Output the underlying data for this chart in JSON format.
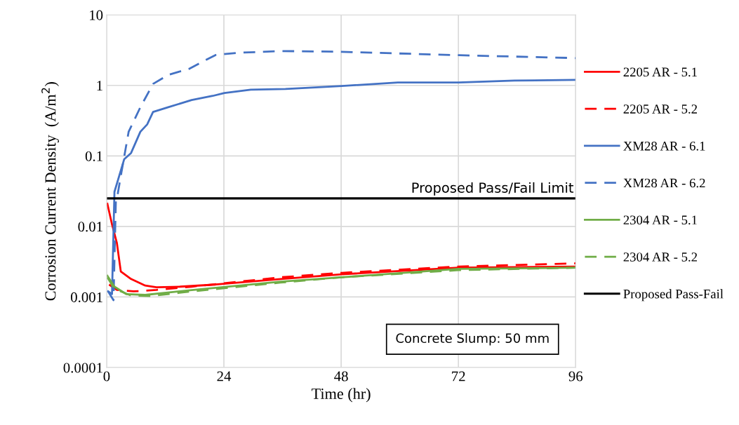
{
  "chart_data": {
    "type": "line",
    "xlabel": "Time (hr)",
    "ylabel": "Corrosion Current Density  (A/m$^{2}$)",
    "log": "y",
    "xlim": [
      0,
      96
    ],
    "xticks": [
      0,
      24,
      48,
      72,
      96
    ],
    "ylim": [
      0.0001,
      10
    ],
    "yticks": [
      0.0001,
      0.001,
      0.01,
      0.1,
      1,
      10
    ],
    "grid": true,
    "legend": "right",
    "annotations": [
      {
        "text": "Proposed Pass/Fail Limit",
        "x": 96,
        "y": 0.025
      },
      "Concrete Slump: 50 mm"
    ],
    "series": [
      {
        "name": "2205 AR - 5.1",
        "color": "#ff0000",
        "line_style": "solid",
        "x": [
          0.15,
          1.1,
          2.1,
          2.9,
          5.0,
          7.9,
          10.2,
          15,
          22.3,
          35.6,
          48.1,
          72,
          96
        ],
        "values": [
          0.021,
          0.0107,
          0.0058,
          0.0023,
          0.0018,
          0.00145,
          0.00137,
          0.0014,
          0.0015,
          0.0018,
          0.0021,
          0.0026,
          0.0027
        ]
      },
      {
        "name": "2205 AR - 5.2",
        "color": "#ff0000",
        "line_style": "dashed",
        "x": [
          0.5,
          2.1,
          5.5,
          10.2,
          17.4,
          35.6,
          48.1,
          72,
          96
        ],
        "values": [
          0.0015,
          0.00126,
          0.0012,
          0.00126,
          0.0014,
          0.0019,
          0.0022,
          0.0027,
          0.003
        ]
      },
      {
        "name": "XM28 AR - 6.1",
        "color": "#4472c4",
        "line_style": "solid",
        "x": [
          0.3,
          1.1,
          1.6,
          3.6,
          5.0,
          6.9,
          8.3,
          9.5,
          12.6,
          17.4,
          21.7,
          24.1,
          29.5,
          36.6,
          48.1,
          59.6,
          72,
          83.5,
          96
        ],
        "values": [
          0.0012,
          0.0011,
          0.031,
          0.09,
          0.11,
          0.22,
          0.28,
          0.42,
          0.49,
          0.62,
          0.71,
          0.78,
          0.87,
          0.89,
          0.98,
          1.1,
          1.1,
          1.17,
          1.2
        ]
      },
      {
        "name": "XM28 AR - 6.2",
        "color": "#4472c4",
        "line_style": "dashed",
        "x": [
          0.3,
          1.4,
          1.9,
          2.2,
          3.0,
          4.5,
          6.9,
          9.5,
          12.6,
          17,
          19.8,
          22.3,
          27,
          35.6,
          48,
          72,
          96
        ],
        "values": [
          0.0012,
          0.0009,
          0.025,
          0.027,
          0.057,
          0.22,
          0.49,
          1.05,
          1.41,
          1.73,
          2.2,
          2.7,
          2.9,
          3.07,
          3.0,
          2.68,
          2.44
        ]
      },
      {
        "name": "2304 AR - 5.1",
        "color": "#70ad47",
        "line_style": "solid",
        "x": [
          0.15,
          1.6,
          4.0,
          7.9,
          17.4,
          35.6,
          48.1,
          72,
          96
        ],
        "values": [
          0.002,
          0.0014,
          0.0011,
          0.00107,
          0.00125,
          0.00165,
          0.0019,
          0.0025,
          0.0026
        ]
      },
      {
        "name": "2304 AR - 5.2",
        "color": "#70ad47",
        "line_style": "dashed",
        "x": [
          0.15,
          1.6,
          5,
          9,
          17.4,
          35.6,
          48,
          72,
          96
        ],
        "values": [
          0.0019,
          0.0013,
          0.00105,
          0.00103,
          0.0012,
          0.0016,
          0.0019,
          0.0024,
          0.0026
        ]
      },
      {
        "name": "Proposed Pass-Fail",
        "color": "#000000",
        "line_style": "solid",
        "x": [
          0,
          96
        ],
        "values": [
          0.025,
          0.025
        ]
      }
    ]
  }
}
